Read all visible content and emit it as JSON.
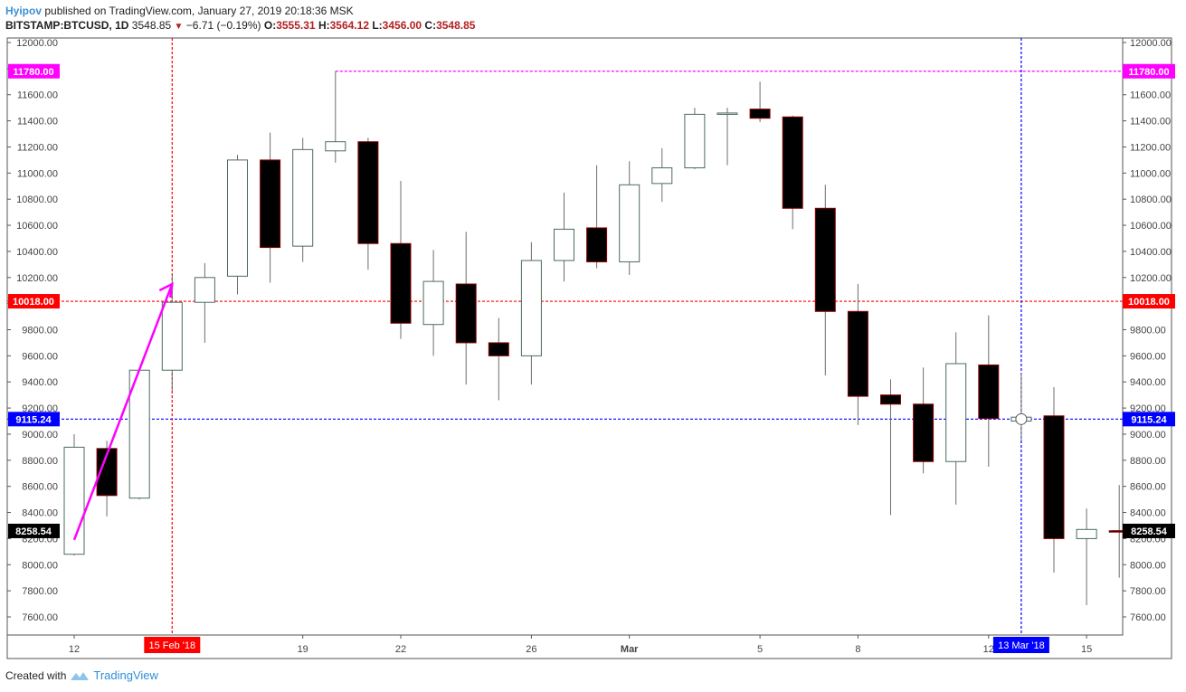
{
  "header": {
    "author": "Hyipov",
    "published_text": " published on TradingView.com, January 27, 2019 20:18:36 MSK",
    "symbol": "BITSTAMP:BTCUSD, 1D",
    "price": "3548.85",
    "change": "−6.71 (−0.19%)",
    "o_label": "O:",
    "o_value": "3555.31",
    "h_label": "H:",
    "h_value": "3564.12",
    "l_label": "L:",
    "l_value": "3456.00",
    "c_label": "C:",
    "c_value": "3548.85"
  },
  "footer": {
    "created_with": "Created with",
    "brand": "TradingView"
  },
  "colors": {
    "magenta": "#ff00ff",
    "red": "#ff0000",
    "blue": "#0000ff",
    "black": "#000000",
    "up_border": "#4a6b5f",
    "down_border": "#8b0000"
  },
  "chart_data": {
    "type": "candlestick",
    "title": "",
    "ylim": [
      7450,
      12050
    ],
    "y_ticks": [
      12000,
      11800,
      11600,
      11400,
      11200,
      11000,
      10800,
      10600,
      10400,
      10200,
      10000,
      9800,
      9600,
      9400,
      9200,
      9000,
      8800,
      8600,
      8400,
      8200,
      8000,
      7800,
      7600
    ],
    "y_tick_labels": [
      "12000.00",
      "11800.00",
      "11600.00",
      "11400.00",
      "11200.00",
      "11000.00",
      "10800.00",
      "10600.00",
      "10400.00",
      "10200.00",
      "10000.00",
      "9800.00",
      "9600.00",
      "9400.00",
      "9200.00",
      "9000.00",
      "8800.00",
      "8600.00",
      "8400.00",
      "8200.00",
      "8000.00",
      "7800.00",
      "7600.00"
    ],
    "x_labels": [
      {
        "index": 0,
        "text": "12"
      },
      {
        "index": 7,
        "text": "19"
      },
      {
        "index": 10,
        "text": "22"
      },
      {
        "index": 14,
        "text": "26"
      },
      {
        "index": 17,
        "text": "Mar"
      },
      {
        "index": 21,
        "text": "5"
      },
      {
        "index": 24,
        "text": "8"
      },
      {
        "index": 28,
        "text": "12"
      },
      {
        "index": 31,
        "text": "15"
      }
    ],
    "candles": [
      {
        "o": 8080,
        "h": 9000,
        "l": 8070,
        "c": 8900
      },
      {
        "o": 8890,
        "h": 8950,
        "l": 8370,
        "c": 8530
      },
      {
        "o": 8510,
        "h": 9490,
        "l": 8500,
        "c": 9490
      },
      {
        "o": 9490,
        "h": 10220,
        "l": 9330,
        "c": 10010
      },
      {
        "o": 10010,
        "h": 10310,
        "l": 9700,
        "c": 10200
      },
      {
        "o": 10210,
        "h": 11140,
        "l": 10070,
        "c": 11100
      },
      {
        "o": 11100,
        "h": 11310,
        "l": 10160,
        "c": 10430
      },
      {
        "o": 10440,
        "h": 11270,
        "l": 10320,
        "c": 11180
      },
      {
        "o": 11170,
        "h": 11780,
        "l": 11080,
        "c": 11240
      },
      {
        "o": 11240,
        "h": 11270,
        "l": 10260,
        "c": 10460
      },
      {
        "o": 10460,
        "h": 10940,
        "l": 9730,
        "c": 9850
      },
      {
        "o": 9840,
        "h": 10410,
        "l": 9600,
        "c": 10170
      },
      {
        "o": 10150,
        "h": 10550,
        "l": 9380,
        "c": 9700
      },
      {
        "o": 9700,
        "h": 9890,
        "l": 9260,
        "c": 9600
      },
      {
        "o": 9600,
        "h": 10470,
        "l": 9380,
        "c": 10330
      },
      {
        "o": 10330,
        "h": 10850,
        "l": 10170,
        "c": 10570
      },
      {
        "o": 10580,
        "h": 11060,
        "l": 10270,
        "c": 10320
      },
      {
        "o": 10320,
        "h": 11090,
        "l": 10220,
        "c": 10910
      },
      {
        "o": 10920,
        "h": 11190,
        "l": 10780,
        "c": 11040
      },
      {
        "o": 11040,
        "h": 11500,
        "l": 11030,
        "c": 11450
      },
      {
        "o": 11450,
        "h": 11500,
        "l": 11060,
        "c": 11460
      },
      {
        "o": 11490,
        "h": 11700,
        "l": 11390,
        "c": 11420
      },
      {
        "o": 11430,
        "h": 11440,
        "l": 10570,
        "c": 10730
      },
      {
        "o": 10730,
        "h": 10910,
        "l": 9450,
        "c": 9940
      },
      {
        "o": 9940,
        "h": 10150,
        "l": 9070,
        "c": 9290
      },
      {
        "o": 9300,
        "h": 9420,
        "l": 8380,
        "c": 9230
      },
      {
        "o": 9230,
        "h": 9510,
        "l": 8700,
        "c": 8790
      },
      {
        "o": 8790,
        "h": 9780,
        "l": 8460,
        "c": 9540
      },
      {
        "o": 9530,
        "h": 9910,
        "l": 8750,
        "c": 9120
      },
      {
        "o": 9100,
        "h": 9470,
        "l": 8950,
        "c": 9130
      },
      {
        "o": 9140,
        "h": 9360,
        "l": 7940,
        "c": 8200
      },
      {
        "o": 8200,
        "h": 8430,
        "l": 7690,
        "c": 8270
      },
      {
        "o": 8260,
        "h": 8610,
        "l": 7900,
        "c": 8258.54
      }
    ],
    "price_lines": [
      {
        "value": 11780,
        "label": "11780.00",
        "color": "#ff00ff",
        "start_index": 8
      },
      {
        "value": 10018,
        "label": "10018.00",
        "color": "#ff0000",
        "start_index": -1
      },
      {
        "value": 9115.24,
        "label": "9115.24",
        "color": "#0000ff",
        "start_index": -1
      },
      {
        "value": 8258.54,
        "label": "8258.54",
        "color": "#000000",
        "start_index": 32,
        "dashed": false
      }
    ],
    "vertical_lines": [
      {
        "index": 3,
        "label": "15 Feb '18",
        "color": "#ff0000"
      },
      {
        "index": 29,
        "label": "13 Mar '18",
        "color": "#0000ff"
      }
    ],
    "trend_arrow": {
      "from": {
        "index": 0,
        "value": 8190
      },
      "to": {
        "index": 3,
        "value": 10150
      },
      "color": "#ff00ff"
    },
    "marker": {
      "index": 29,
      "value": 9115.24
    }
  }
}
